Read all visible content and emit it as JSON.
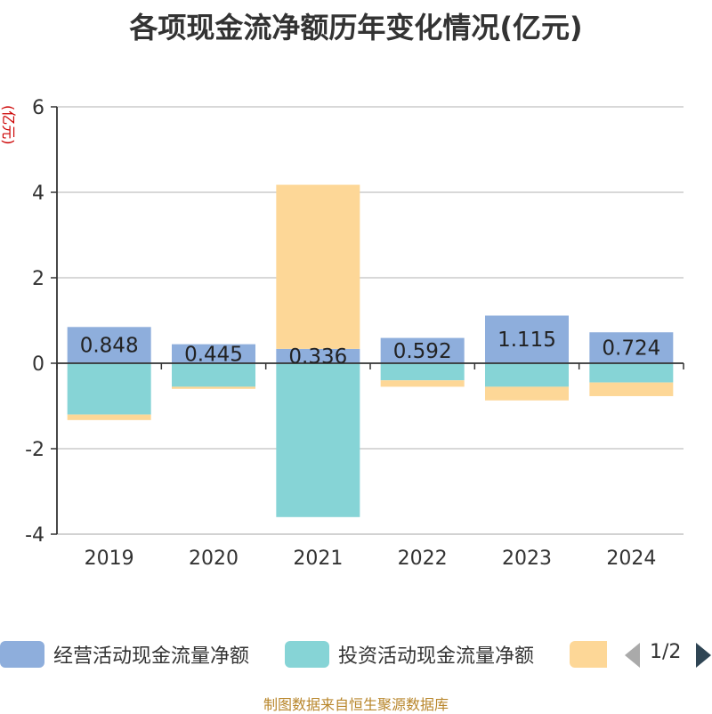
{
  "chart_data": {
    "type": "bar",
    "stacked": true,
    "title": "各项现金流净额历年变化情况(亿元)",
    "ylabel": "(亿元)",
    "ylim": [
      -4,
      6
    ],
    "yticks": [
      -4,
      -2,
      0,
      2,
      4,
      6
    ],
    "categories": [
      "2019",
      "2020",
      "2021",
      "2022",
      "2023",
      "2024"
    ],
    "series": [
      {
        "name": "经营活动现金流量净额",
        "color": "#8eaedc",
        "values": [
          0.848,
          0.445,
          0.336,
          0.592,
          1.115,
          0.724
        ],
        "labels": [
          "0.848",
          "0.445",
          "0.336",
          "0.592",
          "1.115",
          "0.724"
        ]
      },
      {
        "name": "投资活动现金流量净额",
        "color": "#86d4d6",
        "values": [
          -1.2,
          -0.55,
          -3.6,
          -0.4,
          -0.55,
          -0.45
        ]
      },
      {
        "name": "",
        "color": "#fdd797",
        "values": [
          -0.13,
          -0.05,
          3.84,
          -0.15,
          -0.32,
          -0.32
        ]
      }
    ],
    "legend_position": "bottom",
    "grid": true
  },
  "legend": {
    "page_text": "1/2"
  },
  "footer": {
    "source": "制图数据来自恒生聚源数据库"
  }
}
